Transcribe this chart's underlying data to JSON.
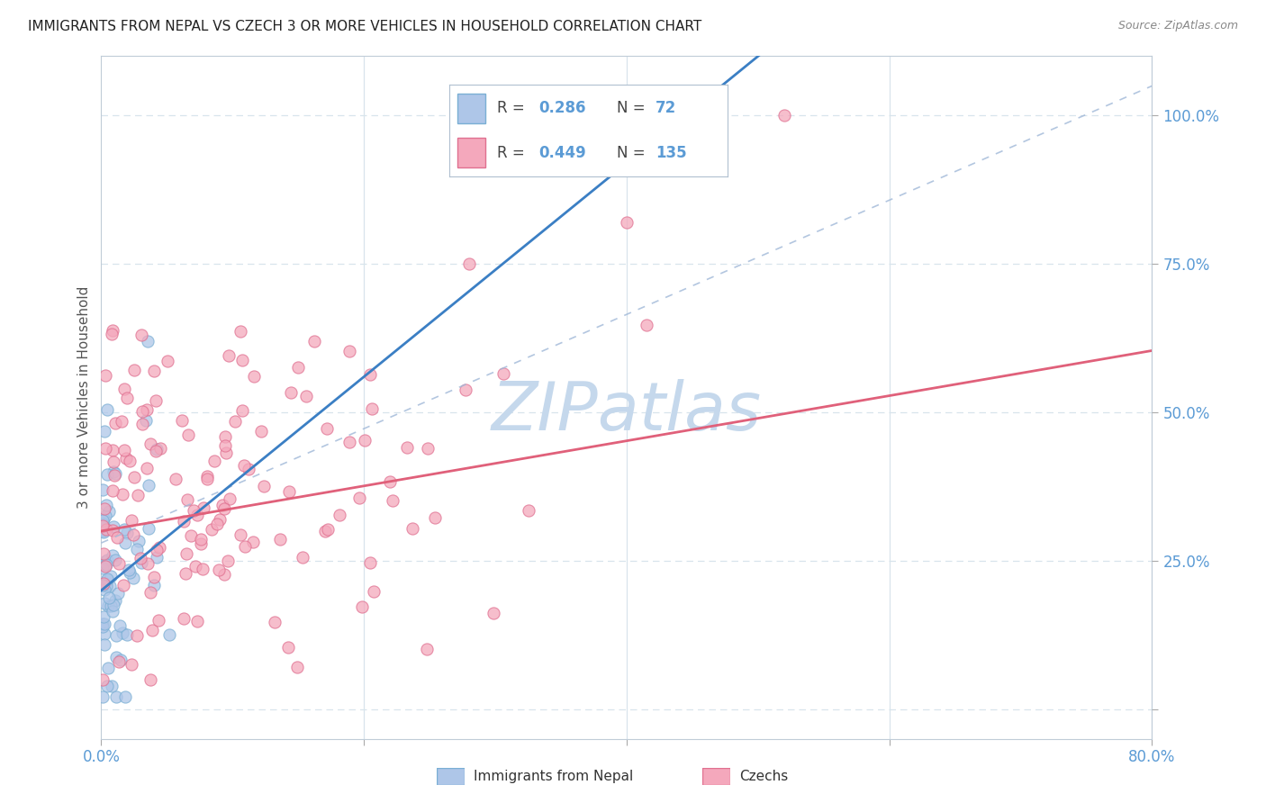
{
  "title": "IMMIGRANTS FROM NEPAL VS CZECH 3 OR MORE VEHICLES IN HOUSEHOLD CORRELATION CHART",
  "source": "Source: ZipAtlas.com",
  "ylabel": "3 or more Vehicles in Household",
  "xlim": [
    0.0,
    0.8
  ],
  "ylim": [
    -0.05,
    1.1
  ],
  "nepal_R": 0.286,
  "nepal_N": 72,
  "czech_R": 0.449,
  "czech_N": 135,
  "nepal_color": "#aec6e8",
  "nepal_edge_color": "#7aafd4",
  "nepal_line_color": "#3b7fc4",
  "czech_color": "#f4a8bc",
  "czech_edge_color": "#e07090",
  "czech_line_color": "#e0607a",
  "ref_line_color": "#a0b8d8",
  "watermark": "ZIPatlas",
  "watermark_color": "#c5d8ec",
  "background_color": "#ffffff",
  "title_color": "#333333",
  "tick_color": "#5b9bd5",
  "grid_color": "#d8e4ec",
  "nepal_trend_intercept": 0.2,
  "nepal_trend_slope": 1.8,
  "czech_trend_intercept": 0.3,
  "czech_trend_slope": 0.38
}
